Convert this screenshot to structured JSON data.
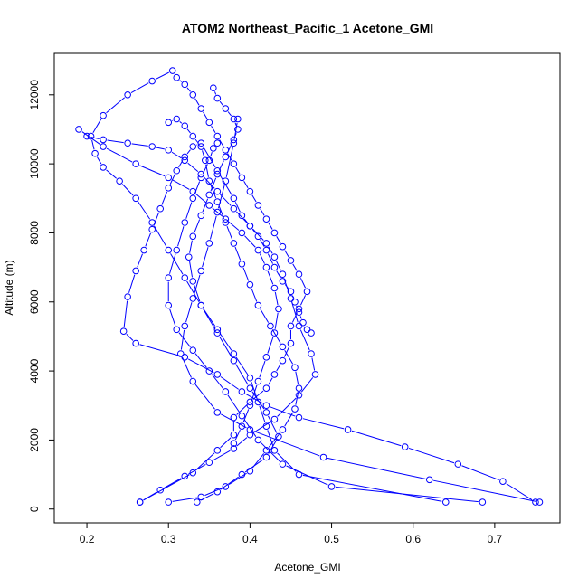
{
  "chart_data": {
    "type": "scatter",
    "title": "ATOM2 Northeast_Pacific_1 Acetone_GMI",
    "xlabel": "Acetone_GMI",
    "ylabel": "Altitude (m)",
    "xlim": [
      0.16,
      0.78
    ],
    "ylim": [
      -400,
      13200
    ],
    "x_ticks": [
      0.2,
      0.3,
      0.4,
      0.5,
      0.6,
      0.7
    ],
    "x_tick_labels": [
      "0.2",
      "0.3",
      "0.4",
      "0.5",
      "0.6",
      "0.7"
    ],
    "y_ticks": [
      0,
      2000,
      4000,
      6000,
      8000,
      10000,
      12000
    ],
    "y_tick_labels": [
      "0",
      "2000",
      "4000",
      "6000",
      "8000",
      "10000",
      "12000"
    ],
    "grid": false,
    "series_color": "#0000ff",
    "profiles": [
      {
        "x": [
          0.265,
          0.33,
          0.36,
          0.38,
          0.38,
          0.4,
          0.42,
          0.43,
          0.44,
          0.45,
          0.45,
          0.46,
          0.47,
          0.46,
          0.45,
          0.44,
          0.43,
          0.42,
          0.41,
          0.4,
          0.39,
          0.38,
          0.37,
          0.36,
          0.35,
          0.34,
          0.33,
          0.32,
          0.31
        ],
        "y": [
          200,
          1050,
          1700,
          2150,
          2650,
          3100,
          3500,
          3900,
          4300,
          4800,
          5300,
          5800,
          6300,
          6800,
          7200,
          7600,
          8000,
          8400,
          8800,
          9200,
          9600,
          10000,
          10400,
          10800,
          11200,
          11600,
          12000,
          12300,
          12500
        ]
      },
      {
        "x": [
          0.3,
          0.34,
          0.37,
          0.4,
          0.42,
          0.44,
          0.455,
          0.46,
          0.455,
          0.44,
          0.425,
          0.41,
          0.4,
          0.39,
          0.38,
          0.37,
          0.36,
          0.35,
          0.345,
          0.34,
          0.33,
          0.32,
          0.31,
          0.3
        ],
        "y": [
          200,
          350,
          650,
          1100,
          1700,
          2300,
          2900,
          3500,
          4100,
          4700,
          5300,
          5900,
          6500,
          7100,
          7700,
          8300,
          8900,
          9500,
          10100,
          10500,
          10800,
          11100,
          11300,
          11200
        ]
      },
      {
        "x": [
          0.64,
          0.46,
          0.43,
          0.42,
          0.41,
          0.4,
          0.38,
          0.36,
          0.34,
          0.33,
          0.325,
          0.33,
          0.34,
          0.35,
          0.36,
          0.37,
          0.38,
          0.385,
          0.38,
          0.37,
          0.36,
          0.355
        ],
        "y": [
          200,
          1000,
          1700,
          2400,
          3100,
          3800,
          4500,
          5200,
          5900,
          6600,
          7300,
          7900,
          8500,
          9100,
          9700,
          10200,
          10700,
          11000,
          11300,
          11600,
          11900,
          12200
        ]
      },
      {
        "x": [
          0.685,
          0.5,
          0.44,
          0.41,
          0.39,
          0.37,
          0.35,
          0.33,
          0.31,
          0.3,
          0.3,
          0.31,
          0.32,
          0.33,
          0.34,
          0.35,
          0.355,
          0.36
        ],
        "y": [
          200,
          650,
          1300,
          2000,
          2700,
          3400,
          4000,
          4600,
          5200,
          5900,
          6700,
          7500,
          8300,
          9000,
          9600,
          10100,
          10450,
          10600
        ]
      },
      {
        "x": [
          0.755,
          0.62,
          0.49,
          0.4,
          0.36,
          0.33,
          0.315,
          0.32,
          0.33,
          0.34,
          0.35,
          0.36,
          0.37,
          0.38,
          0.385
        ],
        "y": [
          200,
          850,
          1500,
          2300,
          2800,
          3700,
          4500,
          5300,
          6100,
          6900,
          7700,
          8600,
          9500,
          10600,
          11300
        ]
      },
      {
        "x": [
          0.75,
          0.71,
          0.655,
          0.59,
          0.52,
          0.46,
          0.42,
          0.39,
          0.36,
          0.32,
          0.26,
          0.245,
          0.25,
          0.26,
          0.27,
          0.28,
          0.29,
          0.3,
          0.31,
          0.32,
          0.33,
          0.34,
          0.36,
          0.38,
          0.39,
          0.4,
          0.41,
          0.42,
          0.43,
          0.44,
          0.45,
          0.455,
          0.46,
          0.465,
          0.47,
          0.475
        ],
        "y": [
          200,
          800,
          1300,
          1800,
          2300,
          2650,
          3000,
          3400,
          3900,
          4400,
          4800,
          5150,
          6150,
          6900,
          7500,
          8100,
          8700,
          9300,
          9800,
          10200,
          10500,
          10600,
          9800,
          9000,
          8500,
          8200,
          7900,
          7500,
          7000,
          6600,
          6300,
          6000,
          5700,
          5400,
          5200,
          5100
        ]
      },
      {
        "x": [
          0.265,
          0.29,
          0.32,
          0.35,
          0.38,
          0.4,
          0.43,
          0.46,
          0.48,
          0.475,
          0.46,
          0.45,
          0.44,
          0.43,
          0.42,
          0.4,
          0.38,
          0.36,
          0.34,
          0.32,
          0.3,
          0.28,
          0.25,
          0.22,
          0.2
        ],
        "y": [
          200,
          550,
          950,
          1350,
          1750,
          2150,
          2600,
          3300,
          3900,
          4500,
          5300,
          6100,
          6800,
          7300,
          7700,
          8200,
          8700,
          9200,
          9700,
          10100,
          10400,
          10500,
          10600,
          10700,
          10800
        ]
      },
      {
        "x": [
          0.335,
          0.36,
          0.39,
          0.42,
          0.435,
          0.42,
          0.4,
          0.38,
          0.36,
          0.34,
          0.32,
          0.3,
          0.28,
          0.26,
          0.24,
          0.22,
          0.21,
          0.205,
          0.22,
          0.25,
          0.28,
          0.305
        ],
        "y": [
          200,
          500,
          1000,
          1500,
          2100,
          2800,
          3500,
          4300,
          5100,
          5900,
          6700,
          7500,
          8300,
          9000,
          9500,
          9900,
          10300,
          10800,
          11400,
          12000,
          12400,
          12700
        ]
      },
      {
        "x": [
          0.19,
          0.22,
          0.26,
          0.3,
          0.33,
          0.35,
          0.37,
          0.39,
          0.41,
          0.42,
          0.43,
          0.435,
          0.43,
          0.42,
          0.41,
          0.4,
          0.39,
          0.38
        ],
        "y": [
          11000,
          10500,
          10000,
          9600,
          9200,
          8800,
          8400,
          8000,
          7500,
          7000,
          6400,
          5800,
          5100,
          4400,
          3700,
          3000,
          2400,
          1900
        ]
      }
    ]
  }
}
